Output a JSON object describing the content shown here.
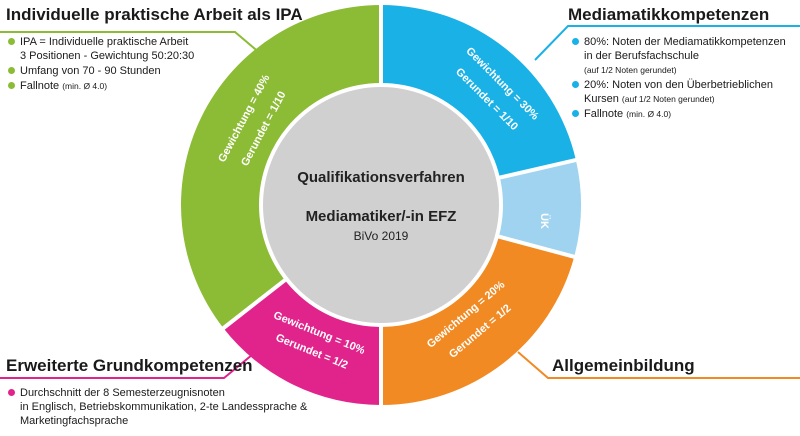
{
  "colors": {
    "green": "#8cbc35",
    "blue": "#1ab1e6",
    "lightblue": "#9fd3f0",
    "orange": "#f18a22",
    "magenta": "#e0248c",
    "center": "#d0d0d0"
  },
  "center": {
    "title": "Qualifikationsverfahren",
    "subtitle": "Mediamatiker/-in EFZ",
    "note": "BiVo 2019"
  },
  "segments": {
    "ipa": {
      "line1": "Gewichtung = 40%",
      "line2": "Gerundet = 1/10"
    },
    "mediamatik": {
      "line1": "Gewichtung = 30%",
      "line2": "Gerundet = 1/10"
    },
    "uek": {
      "label": "ÜK"
    },
    "allgemein": {
      "line1": "Gewichtung = 20%",
      "line2": "Gerundet = 1/2"
    },
    "erweitert": {
      "line1": "Gewichtung = 10%",
      "line2": "Gerundet = 1/2"
    }
  },
  "top_left": {
    "heading": "Individuelle praktische Arbeit als IPA",
    "items": [
      {
        "text": "IPA = Individuelle praktische Arbeit",
        "text2": "3 Positionen - Gewichtung 50:20:30",
        "small": ""
      },
      {
        "text": "Umfang von 70 - 90 Stunden",
        "text2": "",
        "small": ""
      },
      {
        "text": "Fallnote",
        "text2": "",
        "small": "(min. Ø 4.0)"
      }
    ]
  },
  "top_right": {
    "heading": "Mediamatikkompetenzen",
    "items": [
      {
        "text": "80%: Noten der Mediamatikkompetenzen",
        "text2": "in der Berufsfachschule",
        "small": "(auf 1/2 Noten gerundet)"
      },
      {
        "text": "20%: Noten von den Überbetrieblichen",
        "text2": "Kursen",
        "small": "(auf 1/2 Noten gerundet)"
      },
      {
        "text": "Fallnote",
        "text2": "",
        "small": "(min. Ø 4.0)"
      }
    ]
  },
  "bottom_left": {
    "heading": "Erweiterte Grundkompetenzen",
    "items": [
      {
        "text": "Durchschnitt der 8 Semesterzeugnisnoten",
        "text2": "in Englisch, Betriebskommunikation, 2-te Landessprache &",
        "text3": "Marketingfachsprache"
      }
    ]
  },
  "bottom_right": {
    "heading": "Allgemeinbildung"
  }
}
